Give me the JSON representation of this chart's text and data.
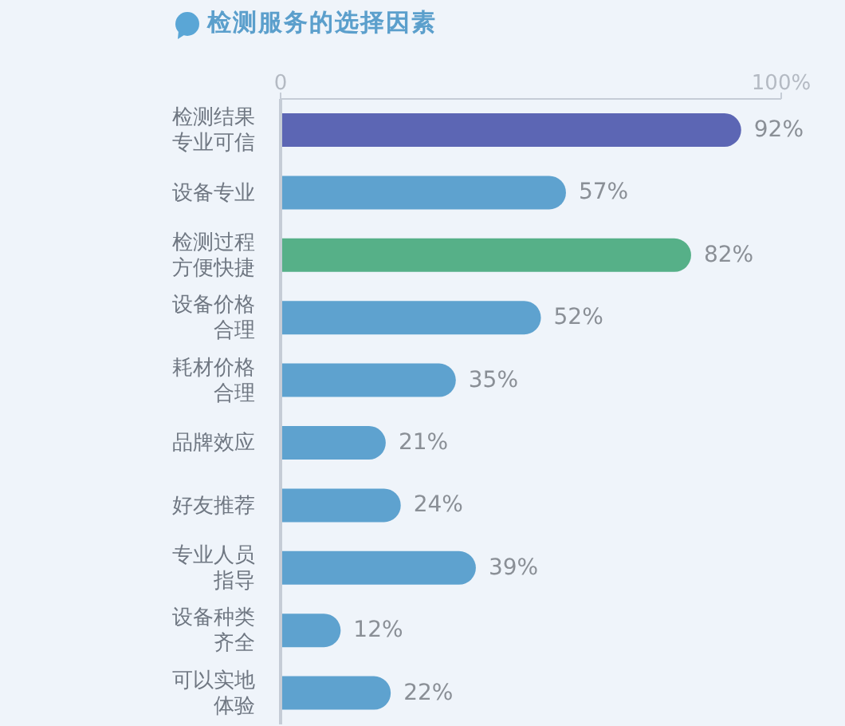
{
  "chart_data": {
    "type": "bar",
    "orientation": "horizontal",
    "title": "检测服务的选择因素",
    "categories": [
      "检测结果专业可信",
      "设备专业",
      "检测过程方便快捷",
      "设备价格合理",
      "耗材价格合理",
      "品牌效应",
      "好友推荐",
      "专业人员指导",
      "设备种类齐全",
      "可以实地体验"
    ],
    "values": [
      92,
      57,
      82,
      52,
      35,
      21,
      24,
      39,
      12,
      22
    ],
    "colors": [
      "#5c66b4",
      "#5ea2cf",
      "#56b088",
      "#5ea2cf",
      "#5ea2cf",
      "#5ea2cf",
      "#5ea2cf",
      "#5ea2cf",
      "#5ea2cf",
      "#5ea2cf"
    ],
    "value_labels": [
      "92%",
      "57%",
      "82%",
      "52%",
      "35%",
      "21%",
      "24%",
      "39%",
      "12%",
      "22%"
    ],
    "xlim": [
      0,
      100
    ],
    "xticks": [
      0,
      {
        "value": 100,
        "label": "100%"
      }
    ]
  }
}
